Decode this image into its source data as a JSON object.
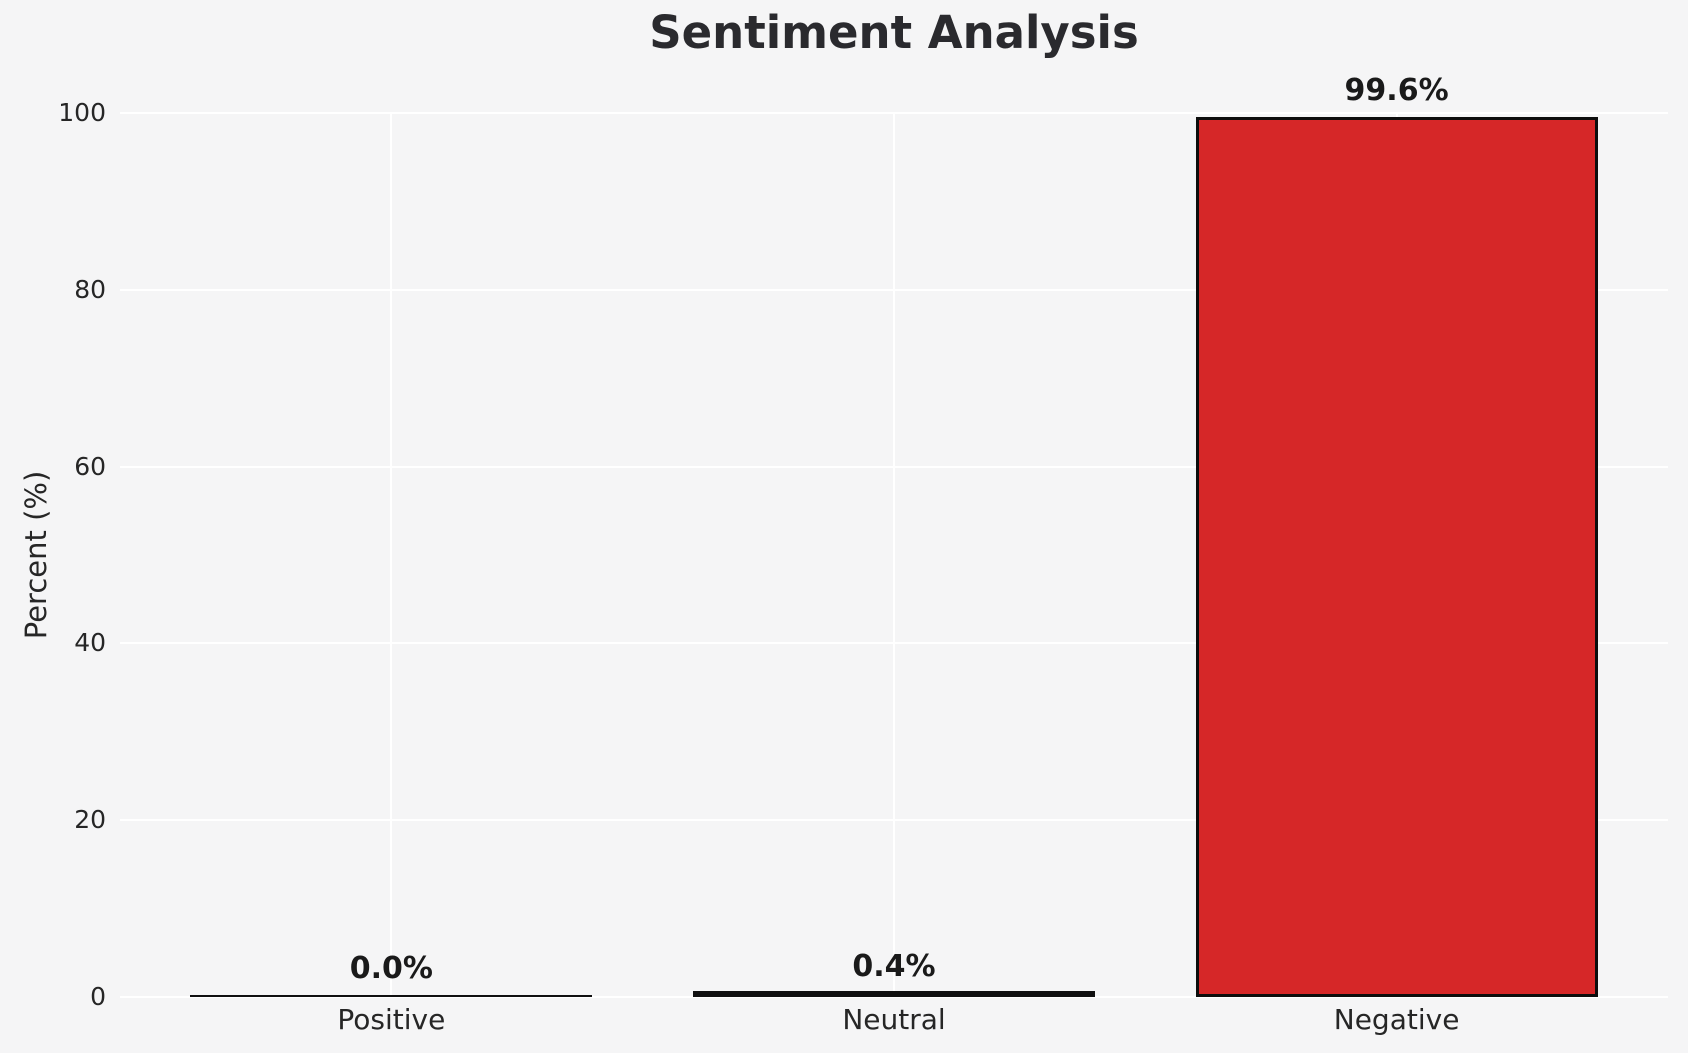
{
  "chart_data": {
    "type": "bar",
    "title": "Sentiment Analysis",
    "categories": [
      "Positive",
      "Neutral",
      "Negative"
    ],
    "values": [
      0.0,
      0.4,
      99.6
    ],
    "value_labels": [
      "0.0%",
      "0.4%",
      "99.6%"
    ],
    "xlabel": "",
    "ylabel": "Percent (%)",
    "ylim": [
      0,
      100
    ],
    "yticks": [
      0,
      20,
      40,
      60,
      80,
      100
    ],
    "grid": "on",
    "legend": "none",
    "colors": {
      "bar_fill": "#d62728",
      "bar_edge": "#0d0d0d",
      "background": "#f5f5f6",
      "gridline": "#ffffff",
      "text": "#262626"
    }
  }
}
